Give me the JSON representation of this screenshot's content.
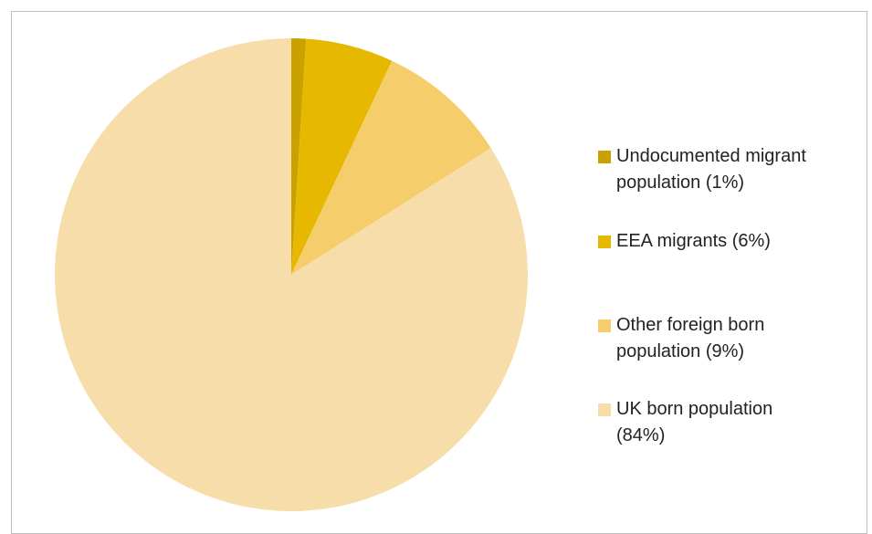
{
  "chart_data": {
    "type": "pie",
    "slices": [
      {
        "label": "Undocumented migrant population (1%)",
        "value": 1,
        "color": "#C9A200"
      },
      {
        "label": "EEA migrants (6%)",
        "value": 6,
        "color": "#E6B800"
      },
      {
        "label": "Other foreign born population (9%)",
        "value": 9,
        "color": "#F6CD6B"
      },
      {
        "label": "UK born population (84%)",
        "value": 84,
        "color": "#F7DDA9"
      }
    ],
    "start_angle": "top",
    "direction": "clockwise",
    "legend": "right"
  },
  "legend": {
    "items": [
      {
        "lines": [
          "Undocumented migrant",
          "population (1%)"
        ]
      },
      {
        "lines": [
          "EEA migrants (6%)"
        ]
      },
      {
        "lines": [
          "Other foreign born",
          "population (9%)"
        ]
      },
      {
        "lines": [
          "UK born population",
          "(84%)"
        ]
      }
    ]
  }
}
